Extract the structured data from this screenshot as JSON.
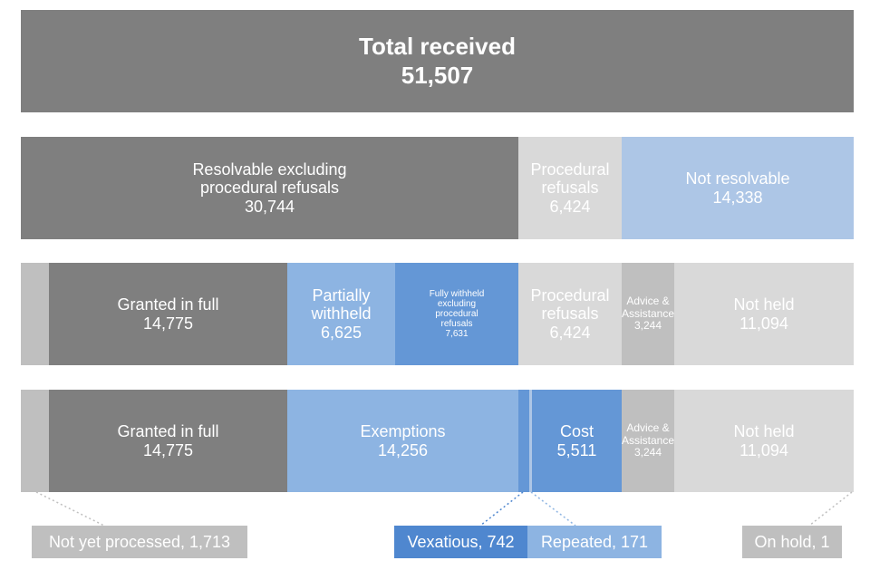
{
  "total": {
    "title": "Total received",
    "value": "51,507"
  },
  "row2": {
    "resolvable": {
      "line1": "Resolvable excluding",
      "line2": "procedural refusals",
      "value": "30,744"
    },
    "procedural": {
      "line1": "Procedural",
      "line2": "refusals",
      "value": "6,424"
    },
    "not_resolvable": {
      "line1": "Not resolvable",
      "value": "14,338"
    }
  },
  "row3": {
    "granted": {
      "line1": "Granted in full",
      "value": "14,775"
    },
    "partial": {
      "line1": "Partially",
      "line2": "withheld",
      "value": "6,625"
    },
    "fully_withheld": {
      "line1": "Fully withheld",
      "line2": "excluding",
      "line3": "procedural",
      "line4": "refusals",
      "value": "7,631"
    },
    "procedural": {
      "line1": "Procedural",
      "line2": "refusals",
      "value": "6,424"
    },
    "advice": {
      "line1": "Advice &",
      "line2": "Assistance",
      "value": "3,244"
    },
    "not_held": {
      "line1": "Not held",
      "value": "11,094"
    }
  },
  "row4": {
    "granted": {
      "line1": "Granted in full",
      "value": "14,775"
    },
    "exemptions": {
      "line1": "Exemptions",
      "value": "14,256"
    },
    "cost": {
      "line1": "Cost",
      "value": "5,511"
    },
    "advice": {
      "line1": "Advice &",
      "line2": "Assistance",
      "value": "3,244"
    },
    "not_held": {
      "line1": "Not held",
      "value": "11,094"
    }
  },
  "labels": {
    "not_yet_processed": "Not yet processed, 1,713",
    "vexatious": "Vexatious, 742",
    "repeated": "Repeated, 171",
    "on_hold": "On hold, 1"
  },
  "colors": {
    "dark_grey": "#7f7f7f",
    "mid_grey": "#bfbfbf",
    "light_grey": "#d9d9d9",
    "pale_blue": "#adc6e6",
    "light_blue": "#8db4e2",
    "mid_blue": "#6497d6",
    "strong_blue": "#4f87cf"
  }
}
